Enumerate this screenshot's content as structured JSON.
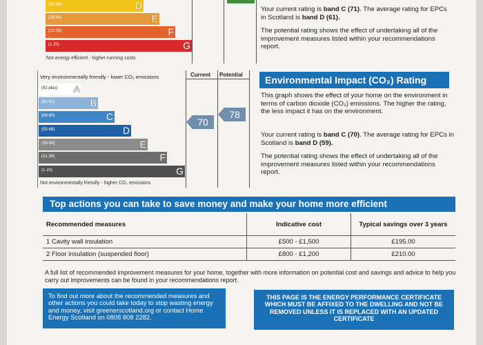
{
  "energy_chart": {
    "bands": [
      {
        "range": "(55-68)",
        "letter": "D",
        "color": "#f3c21b"
      },
      {
        "range": "(39-54)",
        "letter": "E",
        "color": "#e59a3b"
      },
      {
        "range": "(21-38)",
        "letter": "F",
        "color": "#e4632c"
      },
      {
        "range": "(1-20)",
        "letter": "G",
        "color": "#d72a2a"
      }
    ],
    "footer": "Not energy efficient - higher running costs"
  },
  "energy_text": {
    "p1_a": "Your current rating is ",
    "p1_b": "band C (71)",
    "p1_c": ". The average rating for EPCs in Scotland is ",
    "p1_d": "band D (61).",
    "p2": "The potential rating shows the effect of undertaking all of the improvement measures listed within your recommendations report."
  },
  "env_chart": {
    "header_top": "Very environmentally friendly - lower CO₂ emissions",
    "col_current": "Current",
    "col_potential": "Potential",
    "bands": [
      {
        "range": "(92 plus)",
        "letter": "A",
        "color": "#ffffff"
      },
      {
        "range": "(81-91)",
        "letter": "B",
        "color": "#8db3d8"
      },
      {
        "range": "(69-80)",
        "letter": "C",
        "color": "#3f86c7"
      },
      {
        "range": "(55-68)",
        "letter": "D",
        "color": "#1f5fa8"
      },
      {
        "range": "(39-54)",
        "letter": "E",
        "color": "#8b8b8b"
      },
      {
        "range": "(21-38)",
        "letter": "F",
        "color": "#6d6d6d"
      },
      {
        "range": "(1-20)",
        "letter": "G",
        "color": "#4f4f4f"
      }
    ],
    "footer": "Not environmentally friendly - higher CO₂ emissions",
    "current_value": "70",
    "potential_value": "78"
  },
  "env_text": {
    "title": "Environmental Impact (CO₂) Rating",
    "p0": "This graph shows the effect of your home on the environment in terms of carbon dioxide (CO₂) emissions. The higher the rating, the less impact it has on the environment.",
    "p1_a": "Your current rating is ",
    "p1_b": "band C (70)",
    "p1_c": ". The average rating for EPCs in Scotland is ",
    "p1_d": "band D (59).",
    "p2": "The potential rating shows the effect of undertaking all of the improvement measures listed within your recommendations report."
  },
  "actions": {
    "title": "Top actions you can take to save money and make your home more efficient",
    "headers": [
      "Recommended measures",
      "Indicative cost",
      "Typical savings over 3 years"
    ],
    "rows": [
      [
        "1 Cavity wall insulation",
        "£500 - £1,500",
        "£195.00"
      ],
      [
        "2 Floor insulation (suspended floor)",
        "£800 - £1,200",
        "£210.00"
      ]
    ],
    "note": "A full list of recommended improvement measures for your home, together with more information on potential cost and savings and advice to help you carry out improvements can be found in your recommendations report."
  },
  "footer_boxes": {
    "left": "To find out more about the recommended measures and other actions you could take today to stop wasting energy and money, visit greenerscotland.org or contact Home Energy Scotland on 0808 808 2282.",
    "right": "THIS PAGE IS THE ENERGY PERFORMANCE CERTIFICATE WHICH MUST BE AFFIXED TO THE DWELLING AND NOT BE REMOVED UNLESS IT IS REPLACED WITH AN UPDATED CERTIFICATE"
  }
}
